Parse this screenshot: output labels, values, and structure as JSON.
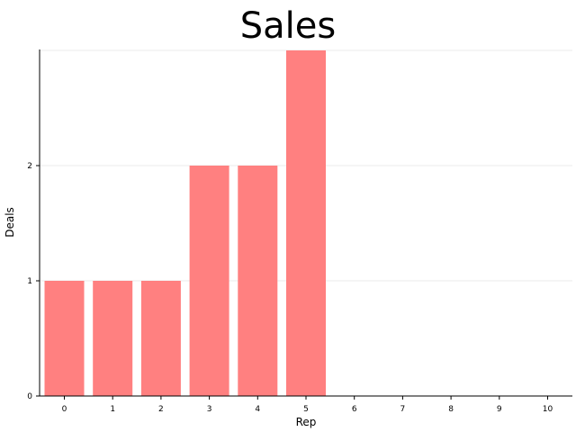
{
  "chart_data": {
    "type": "bar",
    "title": "Sales",
    "xlabel": "Rep",
    "ylabel": "Deals",
    "categories": [
      "0",
      "1",
      "2",
      "3",
      "4",
      "5",
      "6",
      "7",
      "8",
      "9",
      "10"
    ],
    "values": [
      1,
      1,
      1,
      2,
      2,
      3,
      0,
      0,
      0,
      0,
      0
    ],
    "x_ticks": [
      "0",
      "1",
      "2",
      "3",
      "4",
      "5",
      "6",
      "7",
      "8",
      "9",
      "10"
    ],
    "y_ticks": [
      "0",
      "1",
      "2"
    ],
    "ylim": [
      0,
      3
    ],
    "grid": "horizontal",
    "bar_color": "#ff8080"
  }
}
